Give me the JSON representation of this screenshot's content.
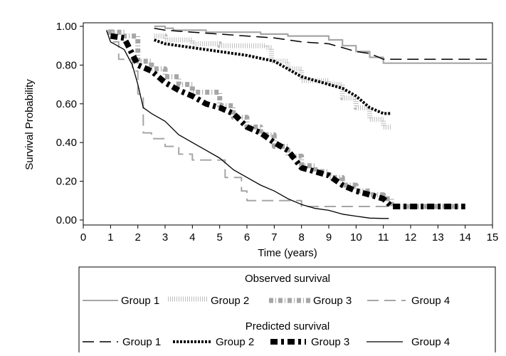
{
  "chart_data": {
    "type": "line",
    "xlabel": "Time (years)",
    "ylabel": "Survival Probability",
    "xlim": [
      0,
      15
    ],
    "ylim": [
      0,
      1
    ],
    "x_ticks": [
      "0",
      "1",
      "2",
      "3",
      "4",
      "5",
      "6",
      "7",
      "8",
      "9",
      "10",
      "11",
      "12",
      "13",
      "14",
      "15"
    ],
    "y_ticks": [
      "0.00",
      "0.20",
      "0.40",
      "0.60",
      "0.80",
      "1.00"
    ],
    "grid": false,
    "legend_placement": "bottom",
    "legend": {
      "observed_title": "Observed survival",
      "predicted_title": "Predicted survival",
      "observed_labels": [
        "Group 1",
        "Group 2",
        "Group 3",
        "Group 4"
      ],
      "predicted_labels": [
        "Group 1",
        "Group 2",
        "Group 3",
        "Group 4"
      ]
    },
    "colors": {
      "observed": "#a6a6a6",
      "predicted": "#000000"
    },
    "series": [
      {
        "kind": "observed",
        "group": 1,
        "style": "solid",
        "x": [
          2.6,
          3.0,
          3.3,
          4.5,
          6.5,
          7.5,
          9.0,
          9.5,
          10.0,
          10.5,
          11.0,
          14.0,
          15.0
        ],
        "y": [
          1.0,
          0.99,
          0.98,
          0.97,
          0.96,
          0.95,
          0.93,
          0.9,
          0.87,
          0.84,
          0.81,
          0.81,
          0.81
        ]
      },
      {
        "kind": "observed",
        "group": 2,
        "style": "dotted-thick",
        "x": [
          2.6,
          3.0,
          4.0,
          5.0,
          6.0,
          6.7,
          6.9,
          7.5,
          8.0,
          9.0,
          9.5,
          10.0,
          10.5,
          11.0,
          11.3
        ],
        "y": [
          0.95,
          0.93,
          0.91,
          0.9,
          0.9,
          0.89,
          0.82,
          0.78,
          0.72,
          0.7,
          0.63,
          0.58,
          0.52,
          0.48,
          0.48
        ]
      },
      {
        "kind": "observed",
        "group": 3,
        "style": "dash-dot-thick",
        "x": [
          0.9,
          1.5,
          2.0,
          2.5,
          3.0,
          3.5,
          4.0,
          5.0,
          5.5,
          6.0,
          6.5,
          7.0,
          7.5,
          8.0,
          8.5,
          9.0,
          9.5,
          10.0,
          10.5,
          11.0,
          11.3,
          14.0
        ],
        "y": [
          0.97,
          0.95,
          0.82,
          0.78,
          0.74,
          0.7,
          0.66,
          0.59,
          0.53,
          0.48,
          0.44,
          0.38,
          0.33,
          0.28,
          0.25,
          0.22,
          0.18,
          0.15,
          0.13,
          0.11,
          0.07,
          0.07
        ]
      },
      {
        "kind": "observed",
        "group": 4,
        "style": "long-dash",
        "x": [
          0.9,
          1.1,
          1.3,
          1.6,
          1.8,
          2.0,
          2.2,
          2.5,
          3.0,
          3.5,
          4.0,
          4.5,
          5.0,
          5.2,
          5.8,
          6.0,
          7.0,
          8.0,
          11.0,
          11.2
        ],
        "y": [
          0.98,
          0.92,
          0.83,
          0.83,
          0.77,
          0.65,
          0.45,
          0.42,
          0.38,
          0.34,
          0.31,
          0.31,
          0.31,
          0.22,
          0.15,
          0.1,
          0.1,
          0.07,
          0.07,
          0.07
        ]
      },
      {
        "kind": "predicted",
        "group": 1,
        "style": "long-dash",
        "x": [
          2.6,
          3.0,
          4.0,
          5.0,
          6.0,
          7.0,
          8.0,
          9.0,
          9.5,
          10.0,
          10.5,
          11.0,
          15.0
        ],
        "y": [
          0.99,
          0.98,
          0.97,
          0.96,
          0.95,
          0.94,
          0.92,
          0.91,
          0.89,
          0.87,
          0.86,
          0.83,
          0.83
        ]
      },
      {
        "kind": "predicted",
        "group": 2,
        "style": "dotted",
        "x": [
          2.6,
          3.0,
          4.0,
          5.0,
          6.0,
          7.0,
          7.5,
          8.0,
          9.0,
          9.5,
          10.0,
          10.5,
          11.0,
          11.3
        ],
        "y": [
          0.93,
          0.91,
          0.89,
          0.87,
          0.85,
          0.82,
          0.78,
          0.74,
          0.7,
          0.68,
          0.64,
          0.58,
          0.55,
          0.55
        ]
      },
      {
        "kind": "predicted",
        "group": 3,
        "style": "thick-dashed",
        "x": [
          1.0,
          1.5,
          2.0,
          2.5,
          3.0,
          3.5,
          4.0,
          4.5,
          5.0,
          5.5,
          6.0,
          6.5,
          7.0,
          7.5,
          8.0,
          8.5,
          9.0,
          9.5,
          10.0,
          10.5,
          11.0,
          11.3,
          14.0
        ],
        "y": [
          0.95,
          0.94,
          0.8,
          0.77,
          0.71,
          0.67,
          0.64,
          0.6,
          0.58,
          0.55,
          0.48,
          0.45,
          0.4,
          0.36,
          0.27,
          0.25,
          0.23,
          0.18,
          0.15,
          0.13,
          0.11,
          0.07,
          0.07
        ]
      },
      {
        "kind": "predicted",
        "group": 4,
        "style": "solid",
        "x": [
          0.85,
          1.0,
          1.5,
          1.8,
          2.0,
          2.2,
          2.5,
          3.0,
          3.5,
          4.0,
          4.5,
          5.0,
          5.5,
          6.0,
          6.5,
          7.0,
          7.5,
          8.0,
          8.5,
          9.0,
          9.5,
          10.0,
          10.5,
          11.0,
          11.2
        ],
        "y": [
          0.98,
          0.92,
          0.88,
          0.8,
          0.7,
          0.58,
          0.55,
          0.51,
          0.44,
          0.4,
          0.36,
          0.32,
          0.26,
          0.22,
          0.18,
          0.15,
          0.11,
          0.08,
          0.06,
          0.05,
          0.03,
          0.02,
          0.01,
          0.008,
          0.008
        ]
      }
    ]
  }
}
